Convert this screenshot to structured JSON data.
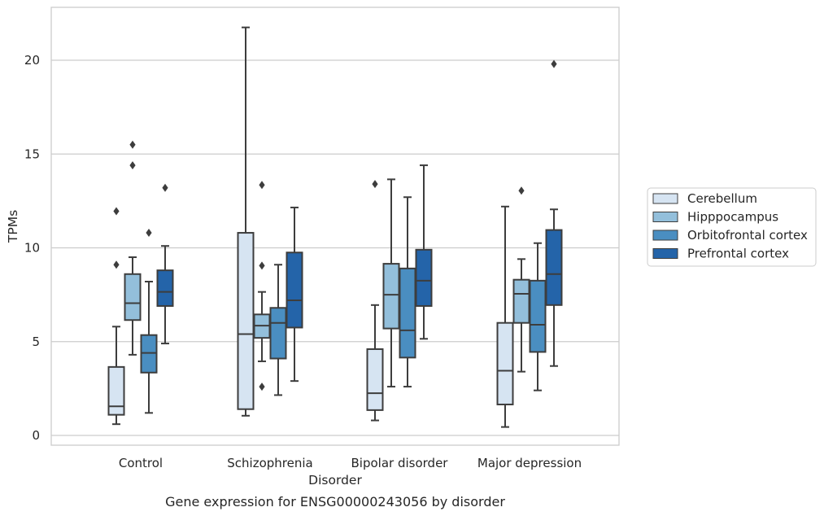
{
  "chart_data": {
    "type": "box",
    "title": "",
    "caption": "Gene expression for ENSG00000243056 by disorder",
    "xlabel": "Disorder",
    "ylabel": "TPMs",
    "ylim": [
      -0.6,
      22.7
    ],
    "yticks": [
      0,
      5,
      10,
      15,
      20
    ],
    "grid": "horizontal",
    "legend_position": "right",
    "categories": [
      "Control",
      "Schizophrenia",
      "Bipolar disorder",
      "Major depression"
    ],
    "colors": {
      "Cerebellum": "#d6e4f2",
      "Hipppocampus": "#93bfdb",
      "Orbitofrontal cortex": "#4a8ec1",
      "Prefrontal cortex": "#2464a9"
    },
    "series": [
      {
        "name": "Cerebellum",
        "boxes": [
          {
            "whislo": 0.6,
            "q1": 1.1,
            "med": 1.55,
            "q3": 3.65,
            "whishi": 5.8,
            "fliers": [
              9.1,
              11.95
            ]
          },
          {
            "whislo": 1.05,
            "q1": 1.4,
            "med": 5.4,
            "q3": 10.8,
            "whishi": 21.75,
            "fliers": []
          },
          {
            "whislo": 0.8,
            "q1": 1.35,
            "med": 2.25,
            "q3": 4.6,
            "whishi": 6.95,
            "fliers": [
              13.4
            ]
          },
          {
            "whislo": 0.45,
            "q1": 1.65,
            "med": 3.45,
            "q3": 6.0,
            "whishi": 12.2,
            "fliers": []
          }
        ]
      },
      {
        "name": "Hipppocampus",
        "boxes": [
          {
            "whislo": 4.3,
            "q1": 6.15,
            "med": 7.05,
            "q3": 8.6,
            "whishi": 9.5,
            "fliers": [
              14.4,
              15.5
            ]
          },
          {
            "whislo": 3.95,
            "q1": 5.2,
            "med": 5.85,
            "q3": 6.45,
            "whishi": 7.65,
            "fliers": [
              2.6,
              9.05,
              13.35
            ]
          },
          {
            "whislo": 2.6,
            "q1": 5.7,
            "med": 7.5,
            "q3": 9.15,
            "whishi": 13.65,
            "fliers": []
          },
          {
            "whislo": 3.4,
            "q1": 6.0,
            "med": 7.55,
            "q3": 8.3,
            "whishi": 9.4,
            "fliers": [
              13.05
            ]
          }
        ]
      },
      {
        "name": "Orbitofrontal cortex",
        "boxes": [
          {
            "whislo": 1.2,
            "q1": 3.35,
            "med": 4.4,
            "q3": 5.35,
            "whishi": 8.2,
            "fliers": [
              10.8
            ]
          },
          {
            "whislo": 2.15,
            "q1": 4.1,
            "med": 6.0,
            "q3": 6.8,
            "whishi": 9.1,
            "fliers": []
          },
          {
            "whislo": 2.6,
            "q1": 4.15,
            "med": 5.6,
            "q3": 8.9,
            "whishi": 12.7,
            "fliers": []
          },
          {
            "whislo": 2.4,
            "q1": 4.45,
            "med": 5.9,
            "q3": 8.25,
            "whishi": 10.25,
            "fliers": []
          }
        ]
      },
      {
        "name": "Prefrontal cortex",
        "boxes": [
          {
            "whislo": 4.9,
            "q1": 6.9,
            "med": 7.65,
            "q3": 8.8,
            "whishi": 10.1,
            "fliers": [
              13.2
            ]
          },
          {
            "whislo": 2.9,
            "q1": 5.75,
            "med": 7.2,
            "q3": 9.75,
            "whishi": 12.15,
            "fliers": []
          },
          {
            "whislo": 5.15,
            "q1": 6.9,
            "med": 8.25,
            "q3": 9.9,
            "whishi": 14.4,
            "fliers": []
          },
          {
            "whislo": 3.7,
            "q1": 6.95,
            "med": 8.6,
            "q3": 10.95,
            "whishi": 12.05,
            "fliers": [
              19.8
            ]
          }
        ]
      }
    ]
  }
}
